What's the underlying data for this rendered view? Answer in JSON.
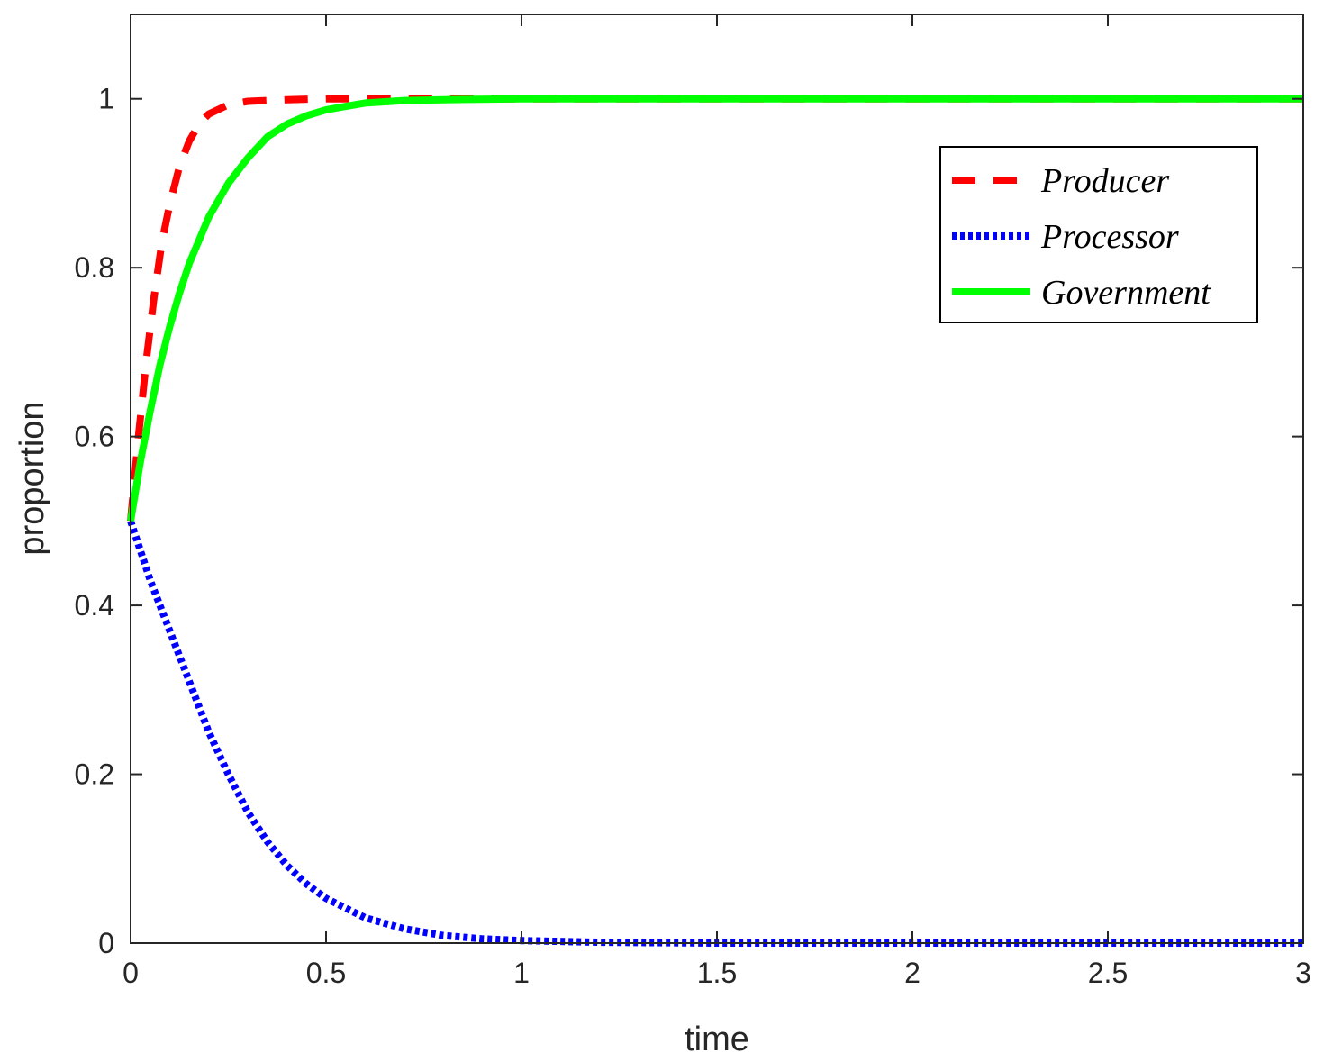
{
  "chart_data": {
    "type": "line",
    "xlabel": "time",
    "ylabel": "proportion",
    "xlim": [
      0,
      3
    ],
    "ylim": [
      0,
      1.1
    ],
    "xticks": [
      0,
      0.5,
      1,
      1.5,
      2,
      2.5,
      3
    ],
    "xtick_labels": [
      "0",
      "0.5",
      "1",
      "1.5",
      "2",
      "2.5",
      "3"
    ],
    "yticks": [
      0,
      0.2,
      0.4,
      0.6,
      0.8,
      1
    ],
    "ytick_labels": [
      "0",
      "0.2",
      "0.4",
      "0.6",
      "0.8",
      "1"
    ],
    "grid": false,
    "legend_position": "top-right",
    "series": [
      {
        "name": "Producer",
        "color": "#ff0000",
        "style": "dashed",
        "x": [
          0,
          0.02,
          0.04,
          0.06,
          0.08,
          0.1,
          0.125,
          0.15,
          0.175,
          0.2,
          0.25,
          0.3,
          0.4,
          0.5,
          0.75,
          1,
          1.5,
          2,
          2.5,
          3
        ],
        "y": [
          0.5,
          0.6,
          0.69,
          0.765,
          0.83,
          0.875,
          0.92,
          0.95,
          0.97,
          0.982,
          0.993,
          0.997,
          0.999,
          1,
          1,
          1,
          1,
          1,
          1,
          1
        ]
      },
      {
        "name": "Processor",
        "color": "#0000ff",
        "style": "dotted",
        "x": [
          0,
          0.05,
          0.1,
          0.15,
          0.2,
          0.25,
          0.3,
          0.35,
          0.4,
          0.45,
          0.5,
          0.6,
          0.7,
          0.8,
          0.9,
          1,
          1.2,
          1.5,
          2,
          2.5,
          3
        ],
        "y": [
          0.5,
          0.43,
          0.37,
          0.31,
          0.25,
          0.2,
          0.155,
          0.12,
          0.092,
          0.07,
          0.053,
          0.03,
          0.017,
          0.009,
          0.005,
          0.003,
          0.001,
          0,
          0,
          0,
          0
        ]
      },
      {
        "name": "Government",
        "color": "#00ff00",
        "style": "solid",
        "x": [
          0,
          0.025,
          0.05,
          0.075,
          0.1,
          0.125,
          0.15,
          0.2,
          0.25,
          0.3,
          0.35,
          0.4,
          0.45,
          0.5,
          0.6,
          0.7,
          0.8,
          1,
          1.5,
          2,
          2.5,
          3
        ],
        "y": [
          0.5,
          0.57,
          0.63,
          0.685,
          0.73,
          0.77,
          0.805,
          0.86,
          0.9,
          0.93,
          0.955,
          0.97,
          0.98,
          0.987,
          0.995,
          0.998,
          0.999,
          1,
          1,
          1,
          1,
          1
        ]
      }
    ]
  }
}
